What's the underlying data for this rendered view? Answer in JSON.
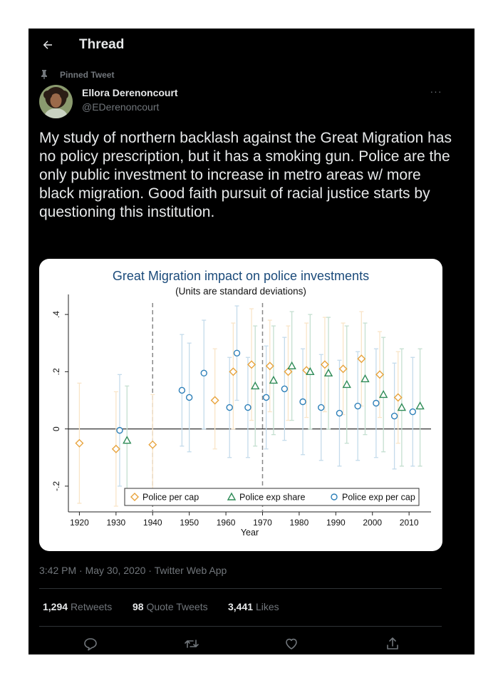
{
  "header": {
    "title": "Thread",
    "back_icon": "arrow-left-icon"
  },
  "pinned_label": "Pinned Tweet",
  "author": {
    "name": "Ellora Derenoncourt",
    "handle": "@EDerenoncourt"
  },
  "more_label": "···",
  "tweet_text": "My study of northern backlash against the Great Migration has no policy prescription, but it has a smoking gun. Police are the only public investment to increase in metro areas w/ more black migration. Good faith pursuit of racial justice starts by questioning this institution.",
  "meta": {
    "timestamp": "3:42 PM · May 30, 2020 · Twitter Web App"
  },
  "stats": [
    {
      "count": "1,294",
      "label": "Retweets"
    },
    {
      "count": "98",
      "label": "Quote Tweets"
    },
    {
      "count": "3,441",
      "label": "Likes"
    }
  ],
  "actions": [
    {
      "icon": "reply-icon"
    },
    {
      "icon": "retweet-icon"
    },
    {
      "icon": "like-icon"
    },
    {
      "icon": "share-icon"
    }
  ],
  "colors": {
    "background": "#000000",
    "text": "#e7e9ea",
    "muted": "#71767b",
    "divider": "#2f3336"
  },
  "chart_data": {
    "type": "scatter",
    "title": "Great Migration impact on police investments",
    "subtitle": "(Units are standard deviations)",
    "xlabel": "Year",
    "ylabel": "",
    "xlim": [
      1917,
      2016
    ],
    "ylim": [
      -0.29,
      0.47
    ],
    "xticks": [
      1920,
      1930,
      1940,
      1950,
      1960,
      1970,
      1980,
      1990,
      2000,
      2010
    ],
    "yticks": [
      -0.2,
      0,
      0.2,
      0.4
    ],
    "ytick_labels": [
      "-.2",
      "0",
      ".2",
      ".4"
    ],
    "reference_lines": [
      1940,
      1970
    ],
    "grid": false,
    "legend_position": "bottom-center",
    "series": [
      {
        "name": "Police per cap",
        "marker": "diamond",
        "color": "#e8a33c",
        "points": [
          {
            "x": 1920,
            "y": -0.05,
            "lo": -0.26,
            "hi": 0.16
          },
          {
            "x": 1930,
            "y": -0.07,
            "lo": -0.27,
            "hi": 0.13
          },
          {
            "x": 1940,
            "y": -0.055,
            "lo": -0.23,
            "hi": 0.12
          },
          {
            "x": 1957,
            "y": 0.1,
            "lo": -0.07,
            "hi": 0.28
          },
          {
            "x": 1962,
            "y": 0.2,
            "lo": 0.0,
            "hi": 0.37
          },
          {
            "x": 1967,
            "y": 0.225,
            "lo": 0.03,
            "hi": 0.42
          },
          {
            "x": 1972,
            "y": 0.22,
            "lo": 0.06,
            "hi": 0.38
          },
          {
            "x": 1977,
            "y": 0.2,
            "lo": 0.03,
            "hi": 0.36
          },
          {
            "x": 1982,
            "y": 0.205,
            "lo": 0.04,
            "hi": 0.37
          },
          {
            "x": 1987,
            "y": 0.225,
            "lo": 0.06,
            "hi": 0.39
          },
          {
            "x": 1992,
            "y": 0.21,
            "lo": 0.05,
            "hi": 0.37
          },
          {
            "x": 1997,
            "y": 0.245,
            "lo": 0.08,
            "hi": 0.41
          },
          {
            "x": 2002,
            "y": 0.19,
            "lo": 0.04,
            "hi": 0.34
          },
          {
            "x": 2007,
            "y": 0.11,
            "lo": -0.05,
            "hi": 0.27
          }
        ]
      },
      {
        "name": "Police exp share",
        "marker": "triangle",
        "color": "#2e8b57",
        "points": [
          {
            "x": 1933,
            "y": -0.04,
            "lo": -0.23,
            "hi": 0.15
          },
          {
            "x": 1968,
            "y": 0.15,
            "lo": -0.06,
            "hi": 0.36
          },
          {
            "x": 1973,
            "y": 0.17,
            "lo": -0.02,
            "hi": 0.36
          },
          {
            "x": 1978,
            "y": 0.22,
            "lo": 0.03,
            "hi": 0.41
          },
          {
            "x": 1983,
            "y": 0.2,
            "lo": 0.0,
            "hi": 0.4
          },
          {
            "x": 1988,
            "y": 0.195,
            "lo": 0.0,
            "hi": 0.39
          },
          {
            "x": 1993,
            "y": 0.155,
            "lo": -0.05,
            "hi": 0.36
          },
          {
            "x": 1998,
            "y": 0.175,
            "lo": -0.02,
            "hi": 0.37
          },
          {
            "x": 2003,
            "y": 0.12,
            "lo": -0.08,
            "hi": 0.32
          },
          {
            "x": 2008,
            "y": 0.075,
            "lo": -0.13,
            "hi": 0.28
          },
          {
            "x": 2013,
            "y": 0.08,
            "lo": -0.13,
            "hi": 0.28
          }
        ]
      },
      {
        "name": "Police exp per cap",
        "marker": "circle",
        "color": "#2c7fb8",
        "points": [
          {
            "x": 1931,
            "y": -0.005,
            "lo": -0.2,
            "hi": 0.19
          },
          {
            "x": 1948,
            "y": 0.135,
            "lo": -0.06,
            "hi": 0.33
          },
          {
            "x": 1950,
            "y": 0.11,
            "lo": -0.08,
            "hi": 0.3
          },
          {
            "x": 1954,
            "y": 0.195,
            "lo": 0.0,
            "hi": 0.38
          },
          {
            "x": 1961,
            "y": 0.075,
            "lo": -0.1,
            "hi": 0.25
          },
          {
            "x": 1963,
            "y": 0.265,
            "lo": 0.1,
            "hi": 0.43
          },
          {
            "x": 1966,
            "y": 0.075,
            "lo": -0.1,
            "hi": 0.25
          },
          {
            "x": 1971,
            "y": 0.11,
            "lo": -0.07,
            "hi": 0.29
          },
          {
            "x": 1976,
            "y": 0.14,
            "lo": -0.04,
            "hi": 0.32
          },
          {
            "x": 1981,
            "y": 0.095,
            "lo": -0.09,
            "hi": 0.28
          },
          {
            "x": 1986,
            "y": 0.075,
            "lo": -0.11,
            "hi": 0.26
          },
          {
            "x": 1991,
            "y": 0.055,
            "lo": -0.13,
            "hi": 0.24
          },
          {
            "x": 1996,
            "y": 0.08,
            "lo": -0.11,
            "hi": 0.27
          },
          {
            "x": 2001,
            "y": 0.09,
            "lo": -0.1,
            "hi": 0.28
          },
          {
            "x": 2006,
            "y": 0.045,
            "lo": -0.14,
            "hi": 0.23
          },
          {
            "x": 2011,
            "y": 0.06,
            "lo": -0.13,
            "hi": 0.25
          }
        ]
      }
    ]
  }
}
